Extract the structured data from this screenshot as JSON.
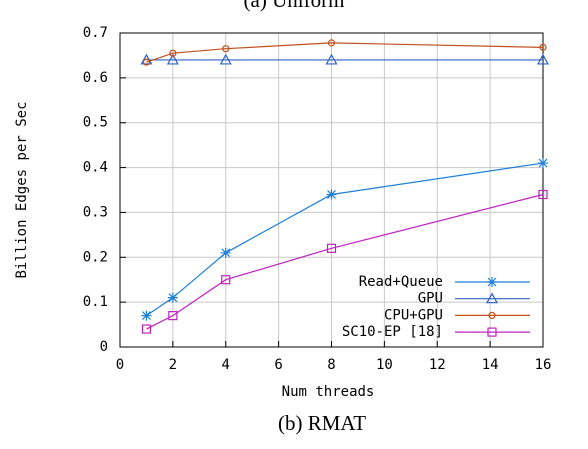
{
  "chart_data": {
    "type": "line",
    "top_caption": "(a) Uniform",
    "caption": "(b) RMAT",
    "xlabel": "Num threads",
    "ylabel": "Billion Edges per Sec",
    "x": [
      1,
      2,
      4,
      8,
      16
    ],
    "series": [
      {
        "name": "Read+Queue",
        "color": "#1e7fd8",
        "marker": "star",
        "values": [
          0.07,
          0.11,
          0.21,
          0.34,
          0.41
        ]
      },
      {
        "name": "GPU",
        "color": "#2f63c4",
        "marker": "triangle",
        "values": [
          0.64,
          0.64,
          0.64,
          0.64,
          0.64
        ]
      },
      {
        "name": "CPU+GPU",
        "color": "#c0501e",
        "marker": "circle",
        "values": [
          0.635,
          0.655,
          0.665,
          0.678,
          0.668
        ]
      },
      {
        "name": "SC10-EP [18]",
        "color": "#c020c0",
        "marker": "square",
        "values": [
          0.04,
          0.07,
          0.15,
          0.22,
          0.34
        ]
      }
    ],
    "xlim": [
      0,
      16
    ],
    "xticks": [
      0,
      2,
      4,
      6,
      8,
      10,
      12,
      14,
      16
    ],
    "ylim": [
      0,
      0.7
    ],
    "yticks": [
      0,
      0.1,
      0.2,
      0.3,
      0.4,
      0.5,
      0.6,
      0.7
    ],
    "grid": true,
    "legend": "lower right"
  }
}
